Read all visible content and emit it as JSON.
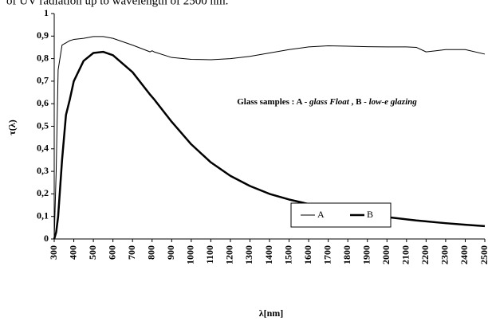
{
  "chart_data": {
    "type": "line",
    "title": "of UV radiation up to wavelength of 2500 nm.",
    "x_label": "λ[nm]",
    "y_label": "τ(λ)",
    "annotation": [
      "Glass samples : A - ",
      "glass Float",
      " , B - ",
      "low-e glazing"
    ],
    "x": [
      300,
      310,
      320,
      340,
      360,
      380,
      400,
      450,
      500,
      550,
      600,
      700,
      790,
      800,
      810,
      900,
      1000,
      1100,
      1200,
      1300,
      1400,
      1500,
      1600,
      1700,
      1800,
      1900,
      2000,
      2100,
      2150,
      2200,
      2250,
      2300,
      2400,
      2500
    ],
    "series": [
      {
        "name": "A",
        "color": "#000000",
        "width": 1,
        "values": [
          0,
          0.3,
          0.75,
          0.86,
          0.87,
          0.88,
          0.885,
          0.89,
          0.898,
          0.898,
          0.89,
          0.86,
          0.83,
          0.835,
          0.83,
          0.805,
          0.797,
          0.795,
          0.8,
          0.81,
          0.825,
          0.84,
          0.852,
          0.857,
          0.855,
          0.853,
          0.852,
          0.852,
          0.85,
          0.83,
          0.835,
          0.84,
          0.84,
          0.82
        ]
      },
      {
        "name": "B",
        "color": "#000000",
        "width": 2.5,
        "values": [
          0,
          0.03,
          0.1,
          0.35,
          0.55,
          0.62,
          0.7,
          0.79,
          0.825,
          0.83,
          0.815,
          0.74,
          0.64,
          0.63,
          0.62,
          0.52,
          0.42,
          0.34,
          0.28,
          0.235,
          0.2,
          0.175,
          0.155,
          0.138,
          0.122,
          0.108,
          0.097,
          0.087,
          0.082,
          0.078,
          0.074,
          0.07,
          0.063,
          0.057
        ]
      }
    ],
    "xlim": [
      300,
      2500
    ],
    "xticks": [
      300,
      400,
      500,
      600,
      700,
      800,
      900,
      1000,
      1100,
      1200,
      1300,
      1400,
      1500,
      1600,
      1700,
      1800,
      1900,
      2000,
      2100,
      2200,
      2300,
      2400,
      2500
    ],
    "ylim": [
      0,
      1
    ],
    "yticks": [
      0,
      {
        "value": 0.1,
        "label": "0,1"
      },
      {
        "value": 0.2,
        "label": "0,2"
      },
      {
        "value": 0.3,
        "label": "0,3"
      },
      {
        "value": 0.4,
        "label": "0,4"
      },
      {
        "value": 0.5,
        "label": "0,5"
      },
      {
        "value": 0.6,
        "label": "0,6"
      },
      {
        "value": 0.7,
        "label": "0,7"
      },
      {
        "value": 0.8,
        "label": "0,8"
      },
      {
        "value": 0.9,
        "label": "0,9"
      },
      1
    ],
    "grid": false,
    "legend": "center"
  }
}
